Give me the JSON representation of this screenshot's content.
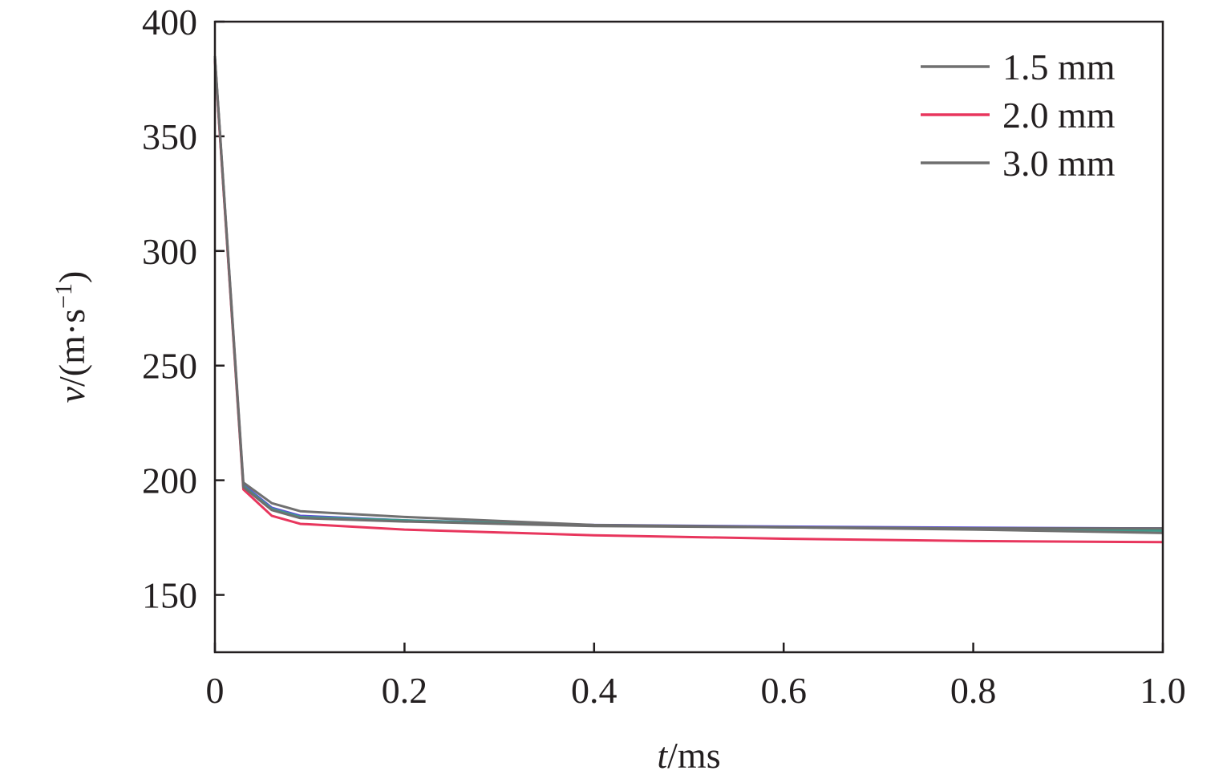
{
  "chart_data": {
    "type": "line",
    "xlabel_var": "t",
    "xlabel_unit": "/ms",
    "ylabel_var": "v",
    "ylabel_unit": "/(m·s",
    "ylabel_sup": "−1",
    "ylabel_close": ")",
    "xlim": [
      0,
      1.0
    ],
    "ylim": [
      125,
      400
    ],
    "xticks": [
      0,
      0.2,
      0.4,
      0.6,
      0.8,
      1.0
    ],
    "xtick_labels": [
      "0",
      "0.2",
      "0.4",
      "0.6",
      "0.8",
      "1.0"
    ],
    "yticks": [
      150,
      200,
      250,
      300,
      350,
      400
    ],
    "ytick_labels": [
      "150",
      "200",
      "250",
      "300",
      "350",
      "400"
    ],
    "legend_position": "top-right",
    "x": [
      0,
      0.03,
      0.06,
      0.09,
      0.2,
      0.4,
      0.6,
      0.8,
      1.0
    ],
    "series": [
      {
        "name": "1.5 mm",
        "color": "#707070",
        "values": [
          385,
          199,
          190,
          186.5,
          184,
          180.5,
          179.5,
          178.5,
          177
        ]
      },
      {
        "name": "2.0 mm",
        "color": "#e8365d",
        "values": [
          383,
          196,
          184.5,
          181,
          178.5,
          176,
          174.5,
          173.5,
          173
        ]
      },
      {
        "name": "3.0 mm",
        "color": "#6e6e6e",
        "values": [
          384,
          197,
          187,
          183.5,
          182,
          180,
          179.5,
          179,
          179
        ]
      }
    ],
    "extra_lines": [
      {
        "color": "#5b4fd4",
        "values": [
          384,
          198,
          188,
          184.5,
          182.5,
          180.5,
          179.8,
          179.3,
          179
        ]
      },
      {
        "color": "#3f9a8a",
        "values": [
          384,
          197.5,
          187.5,
          184,
          182.5,
          180.2,
          179.5,
          178.8,
          178
        ]
      }
    ]
  }
}
